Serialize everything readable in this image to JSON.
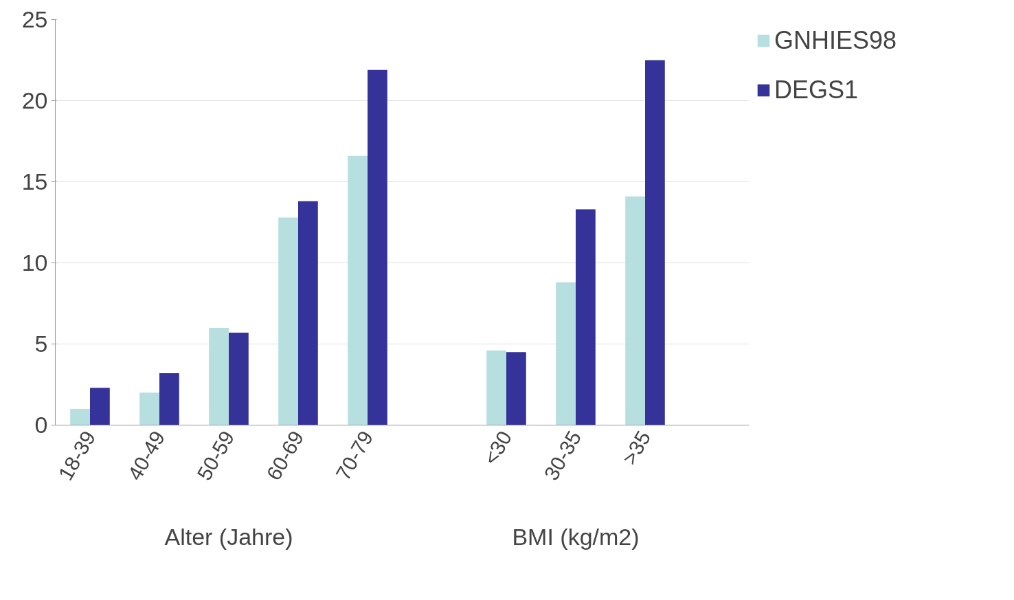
{
  "chart_data": {
    "type": "bar",
    "categories": [
      "18-39",
      "40-49",
      "50-59",
      "60-69",
      "70-79",
      null,
      "<30",
      "30-35",
      ">35",
      null
    ],
    "series": [
      {
        "name": "GNHIES98",
        "color": "#b7dfe0",
        "values": [
          1.0,
          2.0,
          6.0,
          12.8,
          16.6,
          null,
          4.6,
          8.8,
          14.1,
          null
        ]
      },
      {
        "name": "DEGS1",
        "color": "#35339a",
        "values": [
          2.3,
          3.2,
          5.7,
          13.8,
          21.9,
          null,
          4.5,
          13.3,
          22.5,
          null
        ]
      }
    ],
    "ylim": [
      0,
      25
    ],
    "yticks": [
      0,
      5,
      10,
      15,
      20,
      25
    ],
    "grid": "y",
    "legend": "top right",
    "annotations": [
      "Alter (Jahre)",
      "BMI (kg/m2)"
    ]
  }
}
